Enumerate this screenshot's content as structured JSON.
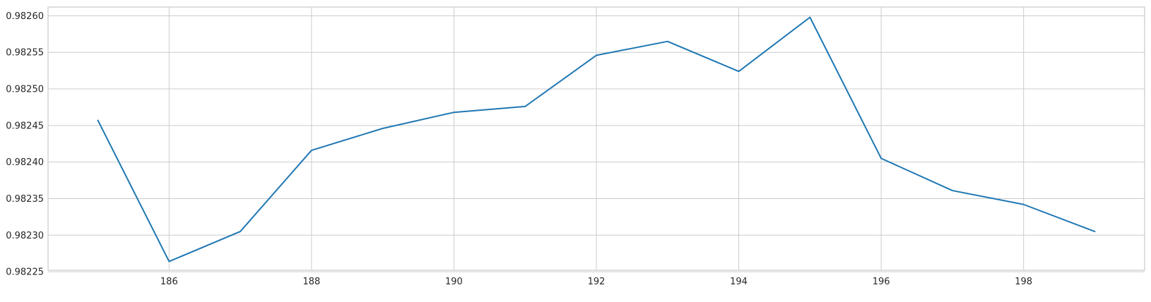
{
  "chart_data": {
    "type": "line",
    "title": "",
    "xlabel": "",
    "ylabel": "",
    "grid": true,
    "xlim": [
      184.3,
      199.7
    ],
    "ylim": [
      0.982252,
      0.982612
    ],
    "x_ticks": [
      186,
      188,
      190,
      192,
      194,
      196,
      198
    ],
    "y_ticks": [
      0.98225,
      0.9823,
      0.98235,
      0.9824,
      0.98245,
      0.9825,
      0.98255,
      0.9826
    ],
    "y_tick_decimals": 5,
    "colors": {
      "series": "#1f77b4",
      "grid": "#cccccc",
      "text": "#262626"
    },
    "series": [
      {
        "x": [
          185,
          186,
          187,
          188,
          189,
          190,
          191,
          192,
          193,
          194,
          195,
          196,
          197,
          198,
          199
        ],
        "y": [
          0.982457,
          0.982264,
          0.982305,
          0.982416,
          0.982446,
          0.982468,
          0.982476,
          0.982546,
          0.982565,
          0.982524,
          0.982598,
          0.982405,
          0.982361,
          0.982342,
          0.982305
        ]
      }
    ]
  }
}
